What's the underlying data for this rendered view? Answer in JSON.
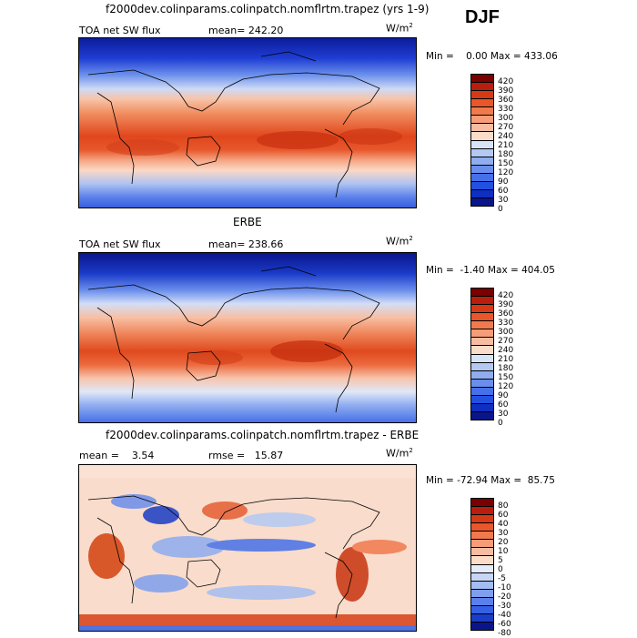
{
  "season": "DJF",
  "units_base": "W/m",
  "units_exp": "2",
  "panels": [
    {
      "title": "f2000dev.colinparams.colinpatch.nomflrtm.trapez (yrs 1-9)",
      "left_label": "TOA net SW flux",
      "mid_label": "mean= 242.20",
      "minmax": "Min =    0.00 Max = 433.06",
      "colorbar": {
        "labels": [
          "420",
          "390",
          "360",
          "330",
          "300",
          "270",
          "240",
          "210",
          "180",
          "150",
          "120",
          "90",
          "60",
          "30",
          "0"
        ],
        "colors": [
          "#7a0000",
          "#b81d0d",
          "#d63a14",
          "#e8562a",
          "#f07a4e",
          "#f69c78",
          "#f8bca2",
          "#fbdcc9",
          "#d7e3f6",
          "#b3c9f3",
          "#8fadf0",
          "#6a8eec",
          "#4670e8",
          "#2251e0",
          "#0f2fc0",
          "#0a158c"
        ]
      }
    },
    {
      "title": "ERBE",
      "left_label": "TOA net SW flux",
      "mid_label": "mean= 238.66",
      "minmax": "Min =  -1.40 Max = 404.05",
      "colorbar": {
        "labels": [
          "420",
          "390",
          "360",
          "330",
          "300",
          "270",
          "240",
          "210",
          "180",
          "150",
          "120",
          "90",
          "60",
          "30",
          "0"
        ],
        "colors": [
          "#7a0000",
          "#b81d0d",
          "#d63a14",
          "#e8562a",
          "#f07a4e",
          "#f69c78",
          "#f8bca2",
          "#fbdcc9",
          "#d7e3f6",
          "#b3c9f3",
          "#8fadf0",
          "#6a8eec",
          "#4670e8",
          "#2251e0",
          "#0f2fc0",
          "#0a158c"
        ]
      }
    },
    {
      "title": "f2000dev.colinparams.colinpatch.nomflrtm.trapez - ERBE",
      "left_label": "mean =    3.54",
      "mid_label": "rmse =   15.87",
      "minmax": "Min = -72.94 Max =  85.75",
      "colorbar": {
        "labels": [
          "80",
          "60",
          "40",
          "30",
          "20",
          "10",
          "5",
          "0",
          "-5",
          "-10",
          "-20",
          "-30",
          "-40",
          "-60",
          "-80"
        ],
        "colors": [
          "#7a0000",
          "#b81d0d",
          "#d63a14",
          "#e8562a",
          "#f07a4e",
          "#f69c78",
          "#f8bca2",
          "#fbdcc9",
          "#e4ecfa",
          "#c7d6f6",
          "#a4bdf2",
          "#7f9fee",
          "#5a80ea",
          "#3560e4",
          "#1b3cc8",
          "#0a158c"
        ]
      }
    }
  ],
  "chart_data": [
    {
      "type": "heatmap",
      "title": "f2000dev.colinparams.colinpatch.nomflrtm.trapez (yrs 1-9)",
      "variable": "TOA net SW flux",
      "units": "W/m^2",
      "mean": 242.2,
      "min": 0.0,
      "max": 433.06,
      "levels": [
        0,
        30,
        60,
        90,
        120,
        150,
        180,
        210,
        240,
        270,
        300,
        330,
        360,
        390,
        420
      ]
    },
    {
      "type": "heatmap",
      "title": "ERBE",
      "variable": "TOA net SW flux",
      "units": "W/m^2",
      "mean": 238.66,
      "min": -1.4,
      "max": 404.05,
      "levels": [
        0,
        30,
        60,
        90,
        120,
        150,
        180,
        210,
        240,
        270,
        300,
        330,
        360,
        390,
        420
      ]
    },
    {
      "type": "heatmap",
      "title": "f2000dev.colinparams.colinpatch.nomflrtm.trapez - ERBE",
      "units": "W/m^2",
      "mean": 3.54,
      "rmse": 15.87,
      "min": -72.94,
      "max": 85.75,
      "levels": [
        -80,
        -60,
        -40,
        -30,
        -20,
        -10,
        -5,
        0,
        5,
        10,
        20,
        30,
        40,
        60,
        80
      ]
    }
  ]
}
